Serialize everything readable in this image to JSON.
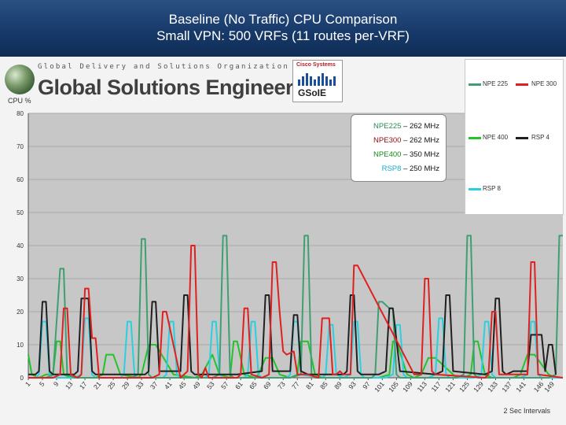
{
  "slide": {
    "title_line1": "Baseline (No Traffic) CPU Comparison",
    "title_line2": "Small VPN: 500 VRFs (11 routes per-VRF)"
  },
  "logo": {
    "org_line": "Global Delivery and Solutions Organization",
    "name": "Global Solutions Engineering",
    "cisco_label": "Cisco Systems",
    "gsoie_label": "GSoIE"
  },
  "mhz_box": [
    {
      "prefix": "NPE225",
      "suffix": " – 262 MHz",
      "color": "#2a8a5a"
    },
    {
      "prefix": "NPE300",
      "suffix": " – 262 MHz",
      "color": "#8a1010"
    },
    {
      "prefix": "NPE400",
      "suffix": " – 350 MHz",
      "color": "#1a8a1a"
    },
    {
      "prefix": "RSP8",
      "suffix": " – 250 MHz",
      "color": "#1aa8c8"
    }
  ],
  "chart_data": {
    "type": "line",
    "ylabel": "CPU %",
    "xlabel": "2 Sec Intervals",
    "ylim": [
      0,
      80
    ],
    "yticks": [
      "0",
      "10",
      "20",
      "30",
      "40",
      "50",
      "60",
      "70",
      "80"
    ],
    "x_tick_labels": [
      "1",
      "5",
      "9",
      "13",
      "17",
      "21",
      "25",
      "29",
      "33",
      "37",
      "41",
      "45",
      "49",
      "53",
      "57",
      "61",
      "65",
      "69",
      "73",
      "77",
      "81",
      "85",
      "89",
      "93",
      "97",
      "101",
      "105",
      "109",
      "113",
      "117",
      "121",
      "125",
      "129",
      "133",
      "137",
      "141",
      "146",
      "149"
    ],
    "x_range": [
      1,
      152
    ],
    "grid": true,
    "legend_position": "right",
    "series": [
      {
        "name": "NPE 225",
        "color": "#3f9f72",
        "x": [
          1,
          6,
          8,
          10,
          11,
          12,
          14,
          30,
          32,
          33,
          34,
          35,
          36,
          50,
          53,
          55,
          56,
          57,
          58,
          59,
          62,
          75,
          78,
          79,
          80,
          81,
          82,
          85,
          98,
          99,
          100,
          101,
          102,
          103,
          104,
          105,
          106,
          107,
          109,
          122,
          124,
          125,
          126,
          127,
          128,
          129,
          130,
          148,
          150,
          151,
          152
        ],
        "y": [
          0,
          0,
          1,
          33,
          33,
          1,
          0,
          0,
          1,
          42,
          42,
          1,
          0,
          0,
          0,
          1,
          43,
          43,
          1,
          0,
          0,
          0,
          1,
          43,
          43,
          1,
          0,
          0,
          0,
          1,
          23,
          23,
          22,
          21,
          21,
          1,
          0,
          0,
          0,
          0,
          1,
          43,
          43,
          1,
          0,
          0,
          0,
          0,
          1,
          43,
          43
        ]
      },
      {
        "name": "NPE 300",
        "color": "#e02020",
        "x": [
          1,
          8,
          10,
          11,
          12,
          13,
          15,
          16,
          17,
          18,
          19,
          20,
          21,
          30,
          36,
          38,
          39,
          40,
          44,
          46,
          47,
          48,
          49,
          50,
          51,
          52,
          60,
          61,
          62,
          63,
          64,
          67,
          69,
          70,
          71,
          72,
          73,
          74,
          76,
          77,
          78,
          79,
          80,
          83,
          84,
          85,
          86,
          87,
          88,
          89,
          90,
          91,
          92,
          93,
          94,
          110,
          112,
          113,
          114,
          115,
          116,
          130,
          131,
          132,
          133,
          134,
          135,
          136,
          137,
          138,
          141,
          142,
          143,
          144,
          145,
          152
        ],
        "y": [
          0,
          0,
          1,
          21,
          21,
          1,
          0,
          1,
          27,
          27,
          12,
          12,
          0,
          0,
          0,
          1,
          20,
          20,
          0,
          2,
          40,
          40,
          1,
          0,
          3,
          0,
          0,
          1,
          21,
          21,
          1,
          0,
          1,
          35,
          35,
          20,
          8,
          7,
          8,
          1,
          1,
          1,
          1,
          0,
          18,
          18,
          18,
          1,
          1,
          2,
          1,
          1,
          1,
          34,
          34,
          1,
          1,
          30,
          30,
          2,
          1,
          0,
          1,
          20,
          20,
          1,
          1,
          1,
          1,
          1,
          1,
          1,
          35,
          35,
          1,
          0
        ]
      },
      {
        "name": "NPE 400",
        "color": "#22c42a",
        "x": [
          1,
          2,
          4,
          6,
          8,
          9,
          10,
          11,
          13,
          20,
          22,
          23,
          25,
          27,
          32,
          33,
          35,
          37,
          42,
          48,
          50,
          53,
          55,
          58,
          59,
          60,
          62,
          65,
          66,
          68,
          70,
          72,
          75,
          77,
          78,
          80,
          82,
          84,
          88,
          100,
          103,
          104,
          105,
          108,
          110,
          112,
          114,
          116,
          122,
          124,
          126,
          127,
          128,
          130,
          132,
          134,
          138,
          140,
          142,
          144,
          148,
          150,
          151,
          152
        ],
        "y": [
          7,
          1,
          0,
          1,
          1,
          11,
          11,
          1,
          0,
          0,
          1,
          7,
          7,
          1,
          0,
          1,
          10,
          10,
          1,
          0,
          1,
          7,
          1,
          0,
          11,
          11,
          1,
          0,
          1,
          6,
          6,
          1,
          0,
          1,
          11,
          11,
          1,
          0,
          0,
          0,
          1,
          11,
          11,
          1,
          0,
          1,
          6,
          6,
          0,
          0,
          1,
          11,
          11,
          1,
          0,
          0,
          0,
          1,
          7,
          7,
          1,
          0,
          0,
          0
        ]
      },
      {
        "name": "RSP 4",
        "color": "#202020",
        "x": [
          1,
          3,
          4,
          5,
          6,
          7,
          8,
          14,
          15,
          16,
          17,
          18,
          19,
          20,
          34,
          35,
          36,
          37,
          38,
          39,
          40,
          44,
          45,
          46,
          47,
          48,
          60,
          67,
          68,
          69,
          70,
          71,
          72,
          75,
          76,
          77,
          78,
          80,
          81,
          90,
          91,
          92,
          93,
          94,
          95,
          100,
          102,
          103,
          104,
          106,
          116,
          118,
          119,
          120,
          121,
          130,
          132,
          133,
          134,
          135,
          136,
          138,
          141,
          142,
          143,
          144,
          145,
          146,
          147,
          148,
          149,
          150
        ],
        "y": [
          1,
          1,
          2,
          23,
          23,
          2,
          1,
          1,
          2,
          24,
          24,
          24,
          2,
          1,
          1,
          2,
          23,
          23,
          2,
          2,
          2,
          2,
          25,
          25,
          2,
          1,
          1,
          2,
          25,
          25,
          2,
          2,
          2,
          2,
          19,
          19,
          2,
          1,
          1,
          1,
          2,
          25,
          25,
          2,
          1,
          1,
          2,
          21,
          21,
          2,
          1,
          2,
          25,
          25,
          2,
          1,
          2,
          24,
          24,
          2,
          1,
          2,
          2,
          2,
          13,
          13,
          13,
          13,
          2,
          10,
          10,
          1
        ]
      },
      {
        "name": "RSP 8",
        "color": "#2ad0e0",
        "x": [
          1,
          3,
          4,
          5,
          6,
          7,
          8,
          14,
          16,
          17,
          18,
          19,
          20,
          27,
          28,
          29,
          30,
          31,
          32,
          39,
          40,
          41,
          42,
          43,
          44,
          51,
          52,
          53,
          54,
          55,
          56,
          62,
          63,
          64,
          65,
          66,
          67,
          74,
          75,
          76,
          77,
          78,
          84,
          85,
          86,
          87,
          88,
          90,
          92,
          93,
          94,
          95,
          96,
          102,
          104,
          105,
          106,
          107,
          108,
          114,
          116,
          117,
          118,
          119,
          120,
          127,
          129,
          130,
          131,
          132,
          133,
          140,
          142,
          143,
          144,
          145,
          146,
          152
        ],
        "y": [
          0,
          0,
          1,
          17,
          17,
          1,
          0,
          0,
          1,
          18,
          18,
          1,
          0,
          0,
          1,
          17,
          17,
          1,
          0,
          0,
          1,
          17,
          17,
          1,
          0,
          0,
          1,
          17,
          17,
          1,
          0,
          0,
          1,
          17,
          17,
          1,
          0,
          0,
          1,
          17,
          17,
          1,
          0,
          1,
          16,
          16,
          1,
          0,
          1,
          17,
          17,
          1,
          0,
          0,
          1,
          16,
          16,
          1,
          0,
          0,
          1,
          18,
          18,
          1,
          0,
          0,
          1,
          17,
          17,
          1,
          0,
          0,
          1,
          17,
          17,
          1,
          0,
          0
        ]
      }
    ]
  }
}
